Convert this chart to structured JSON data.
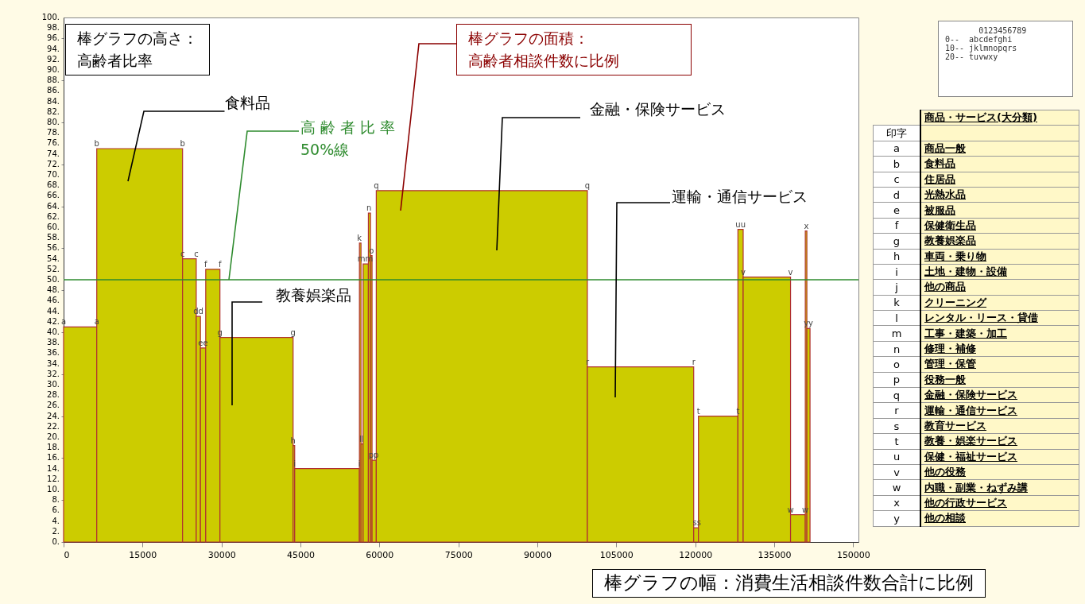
{
  "chart_data": {
    "type": "histogram",
    "color": "#cccc00",
    "bins": [
      0,
      6300,
      22600,
      25200,
      26000,
      27000,
      29700,
      43600,
      43900,
      56200,
      56500,
      56900,
      57900,
      58300,
      58600,
      59400,
      99500,
      119700,
      120600,
      128100,
      129100,
      138100,
      140900,
      141200,
      141800
    ],
    "values": [
      41,
      75,
      54,
      43,
      37,
      52,
      39,
      18.4,
      14,
      57,
      18.7,
      53,
      62.7,
      54.6,
      15.6,
      67,
      33.4,
      2.7,
      24,
      59.6,
      50.5,
      5.2,
      59.3,
      40.7
    ],
    "xlim": [
      0,
      151000
    ],
    "xticks": [
      0,
      15000,
      30000,
      45000,
      60000,
      75000,
      90000,
      105000,
      120000,
      135000,
      150000
    ],
    "ylim": [
      0,
      100
    ],
    "yticks": [
      {
        "value": 0,
        "label": "0."
      },
      {
        "value": 2,
        "label": "2."
      },
      {
        "value": 4,
        "label": "4."
      },
      {
        "value": 6,
        "label": "6."
      },
      {
        "value": 8,
        "label": "8."
      },
      {
        "value": 10,
        "label": "10."
      },
      {
        "value": 12,
        "label": "12."
      },
      {
        "value": 14,
        "label": "14."
      },
      {
        "value": 16,
        "label": "16."
      },
      {
        "value": 18,
        "label": "18."
      },
      {
        "value": 20,
        "label": "20."
      },
      {
        "value": 22,
        "label": "22."
      },
      {
        "value": 24,
        "label": "24."
      },
      {
        "value": 26,
        "label": "26."
      },
      {
        "value": 28,
        "label": "28."
      },
      {
        "value": 30,
        "label": "30."
      },
      {
        "value": 32,
        "label": "32."
      },
      {
        "value": 34,
        "label": "34."
      },
      {
        "value": 36,
        "label": "36."
      },
      {
        "value": 38,
        "label": "38."
      },
      {
        "value": 40,
        "label": "40."
      },
      {
        "value": 42,
        "label": "42."
      },
      {
        "value": 44,
        "label": "44."
      },
      {
        "value": 46,
        "label": "46."
      },
      {
        "value": 48,
        "label": "48."
      },
      {
        "value": 50,
        "label": "50."
      },
      {
        "value": 52,
        "label": "52."
      },
      {
        "value": 54,
        "label": "54."
      },
      {
        "value": 56,
        "label": "56."
      },
      {
        "value": 58,
        "label": "58."
      },
      {
        "value": 60,
        "label": "60."
      },
      {
        "value": 62,
        "label": "62."
      },
      {
        "value": 64,
        "label": "64."
      },
      {
        "value": 66,
        "label": "66."
      },
      {
        "value": 68,
        "label": "68."
      },
      {
        "value": 70,
        "label": "70."
      },
      {
        "value": 72,
        "label": "72."
      },
      {
        "value": 74,
        "label": "74."
      },
      {
        "value": 76,
        "label": "76."
      },
      {
        "value": 78,
        "label": "78."
      },
      {
        "value": 80,
        "label": "80."
      },
      {
        "value": 82,
        "label": "82."
      },
      {
        "value": 84,
        "label": "84."
      },
      {
        "value": 86,
        "label": "86."
      },
      {
        "value": 88,
        "label": "88."
      },
      {
        "value": 90,
        "label": "90."
      },
      {
        "value": 92,
        "label": "92."
      },
      {
        "value": 94,
        "label": "94."
      },
      {
        "value": 96,
        "label": "96."
      },
      {
        "value": 98,
        "label": "98."
      },
      {
        "value": 100,
        "label": "100."
      }
    ],
    "ref_lines": [
      {
        "axis": "y",
        "value": 50,
        "label": "高 齢 者 比 率\n50%線",
        "color": "#2e8b2e"
      }
    ],
    "annotations": [
      "棒グラフの高さ：",
      "高齢者比率",
      "棒グラフの面積：",
      "高齢者相談件数に比例",
      "食料品",
      "教養娯楽品",
      "金融・保険サービス",
      "運輸・通信サービス",
      "棒グラフの幅：消費生活相談件数合計に比例",
      "商品・サービス(大分類)",
      "印字",
      "a 商品一般",
      "b 食料品",
      "c 住居品",
      "d 光熱水品",
      "e 被服品",
      "f 保健衛生品",
      "g 教養娯楽品",
      "h 車両・乗り物",
      "i 土地・建物・設備",
      "j 他の商品",
      "k クリーニング",
      "l レンタル・リース・貸借",
      "m 工事・建築・加工",
      "n 修理・補修",
      "o 管理・保管",
      "p 役務一般",
      "q 金融・保険サービス",
      "r 運輸・通信サービス",
      "s 教育サービス",
      "t 教養・娯楽サービス",
      "u 保健・福祉サービス",
      "v 他の役務",
      "w 内職・副業・ねずみ講",
      "x 他の行政サービス",
      "y 他の相談",
      "0123456789",
      "0--  abcdefghi",
      "10-- jklmnopqrs",
      "20-- tuvwxy",
      {
        "text": "a",
        "x": 0,
        "y": 41
      },
      {
        "text": "a",
        "x": 6300,
        "y": 41
      },
      {
        "text": "b",
        "x": 6300,
        "y": 75
      },
      {
        "text": "b",
        "x": 22600,
        "y": 75
      },
      {
        "text": "c",
        "x": 22600,
        "y": 54
      },
      {
        "text": "c",
        "x": 25200,
        "y": 54
      },
      {
        "text": "dd",
        "x": 25600,
        "y": 43
      },
      {
        "text": "ee",
        "x": 26500,
        "y": 37
      },
      {
        "text": "f",
        "x": 27000,
        "y": 52
      },
      {
        "text": "f",
        "x": 29700,
        "y": 52
      },
      {
        "text": "g",
        "x": 29700,
        "y": 39
      },
      {
        "text": "g",
        "x": 43600,
        "y": 39
      },
      {
        "text": "h",
        "x": 43600,
        "y": 18.4
      },
      {
        "text": "i",
        "x": 43900,
        "y": 14
      },
      {
        "text": "i",
        "x": 56200,
        "y": 14
      },
      {
        "text": "k",
        "x": 56200,
        "y": 57
      },
      {
        "text": "ll",
        "x": 56600,
        "y": 18.7
      },
      {
        "text": "mm",
        "x": 57300,
        "y": 53
      },
      {
        "text": "n",
        "x": 58000,
        "y": 62.7
      },
      {
        "text": "o",
        "x": 58500,
        "y": 54.6
      },
      {
        "text": "pp",
        "x": 58900,
        "y": 15.6
      },
      {
        "text": "q",
        "x": 59400,
        "y": 67
      },
      {
        "text": "q",
        "x": 99500,
        "y": 67
      },
      {
        "text": "r",
        "x": 99500,
        "y": 33.4
      },
      {
        "text": "r",
        "x": 119700,
        "y": 33.4
      },
      {
        "text": "ss",
        "x": 120300,
        "y": 2.7
      },
      {
        "text": "t",
        "x": 120600,
        "y": 24
      },
      {
        "text": "t",
        "x": 128100,
        "y": 24
      },
      {
        "text": "uu",
        "x": 128600,
        "y": 59.6
      },
      {
        "text": "v",
        "x": 129100,
        "y": 50.5
      },
      {
        "text": "v",
        "x": 138100,
        "y": 50.5
      },
      {
        "text": "w",
        "x": 138100,
        "y": 5.2
      },
      {
        "text": "w",
        "x": 140900,
        "y": 5.2
      },
      {
        "text": "x",
        "x": 141100,
        "y": 59.3
      },
      {
        "text": "yy",
        "x": 141500,
        "y": 40.7
      }
    ]
  }
}
